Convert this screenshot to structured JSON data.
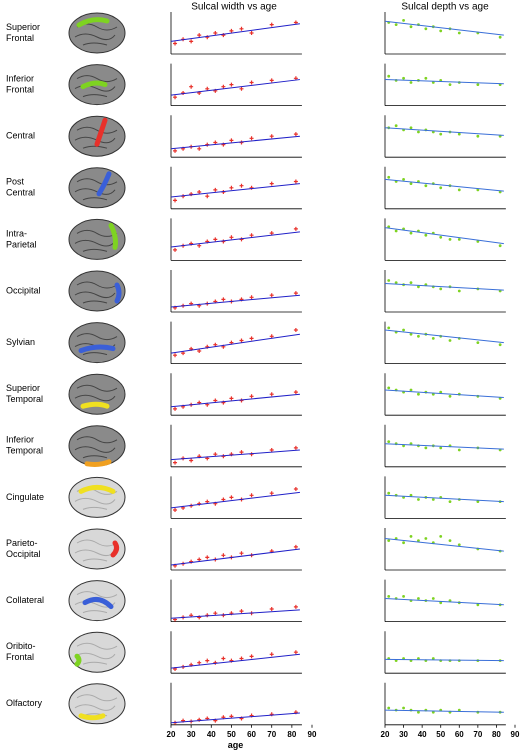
{
  "chart_data": {
    "type": "scatter",
    "x": [
      22,
      26,
      30,
      34,
      38,
      42,
      46,
      50,
      55,
      60,
      70,
      82
    ],
    "xlim": [
      20,
      90
    ],
    "xticks": [
      20,
      30,
      40,
      50,
      60,
      70,
      80,
      90
    ],
    "xlabel": "age",
    "ylim": [
      0,
      1
    ],
    "trend_x": [
      20,
      84
    ],
    "regions": [
      [
        "Superior",
        "Frontal"
      ],
      [
        "Inferior",
        "Frontal"
      ],
      [
        "Central"
      ],
      [
        "Post",
        "Central"
      ],
      [
        "Intra-",
        "Parietal"
      ],
      [
        "Occipital"
      ],
      [
        "Sylvian"
      ],
      [
        "Superior",
        "Temporal"
      ],
      [
        "Inferior",
        "Temporal"
      ],
      [
        "Cingulate"
      ],
      [
        "Parieto-",
        "Occipital"
      ],
      [
        "Collateral"
      ],
      [
        "Oribito-",
        "Frontal"
      ],
      [
        "Olfactory"
      ]
    ],
    "panels": [
      {
        "title": "Sulcal width vs age",
        "color": "#e8302a",
        "line_color": "#2020c8",
        "rows": [
          {
            "values": [
              0.25,
              0.35,
              0.3,
              0.45,
              0.4,
              0.5,
              0.45,
              0.55,
              0.6,
              0.5,
              0.7,
              0.75
            ],
            "trend": [
              0.3,
              0.72
            ]
          },
          {
            "values": [
              0.2,
              0.3,
              0.45,
              0.3,
              0.4,
              0.35,
              0.45,
              0.5,
              0.4,
              0.55,
              0.6,
              0.65
            ],
            "trend": [
              0.25,
              0.62
            ]
          },
          {
            "values": [
              0.15,
              0.2,
              0.25,
              0.2,
              0.3,
              0.35,
              0.3,
              0.4,
              0.35,
              0.45,
              0.5,
              0.55
            ],
            "trend": [
              0.2,
              0.5
            ]
          },
          {
            "values": [
              0.2,
              0.3,
              0.35,
              0.4,
              0.3,
              0.45,
              0.4,
              0.5,
              0.55,
              0.5,
              0.6,
              0.65
            ],
            "trend": [
              0.28,
              0.6
            ]
          },
          {
            "values": [
              0.25,
              0.35,
              0.4,
              0.35,
              0.45,
              0.5,
              0.45,
              0.55,
              0.5,
              0.6,
              0.65,
              0.75
            ],
            "trend": [
              0.32,
              0.68
            ]
          },
          {
            "values": [
              0.1,
              0.15,
              0.2,
              0.15,
              0.2,
              0.25,
              0.3,
              0.25,
              0.3,
              0.35,
              0.4,
              0.45
            ],
            "trend": [
              0.12,
              0.4
            ]
          },
          {
            "values": [
              0.2,
              0.25,
              0.35,
              0.3,
              0.4,
              0.45,
              0.4,
              0.5,
              0.55,
              0.6,
              0.65,
              0.8
            ],
            "trend": [
              0.25,
              0.7
            ]
          },
          {
            "values": [
              0.15,
              0.2,
              0.25,
              0.3,
              0.25,
              0.35,
              0.3,
              0.4,
              0.35,
              0.45,
              0.5,
              0.55
            ],
            "trend": [
              0.2,
              0.5
            ]
          },
          {
            "values": [
              0.1,
              0.2,
              0.15,
              0.25,
              0.2,
              0.3,
              0.25,
              0.3,
              0.35,
              0.3,
              0.4,
              0.45
            ],
            "trend": [
              0.17,
              0.4
            ]
          },
          {
            "values": [
              0.2,
              0.25,
              0.3,
              0.35,
              0.4,
              0.35,
              0.45,
              0.5,
              0.45,
              0.55,
              0.6,
              0.7
            ],
            "trend": [
              0.25,
              0.62
            ]
          },
          {
            "values": [
              0.1,
              0.15,
              0.2,
              0.25,
              0.3,
              0.25,
              0.35,
              0.3,
              0.4,
              0.35,
              0.45,
              0.55
            ],
            "trend": [
              0.12,
              0.5
            ]
          },
          {
            "values": [
              0.05,
              0.1,
              0.15,
              0.1,
              0.15,
              0.2,
              0.15,
              0.2,
              0.25,
              0.2,
              0.3,
              0.35
            ],
            "trend": [
              0.08,
              0.28
            ]
          },
          {
            "values": [
              0.1,
              0.15,
              0.2,
              0.25,
              0.3,
              0.25,
              0.35,
              0.3,
              0.35,
              0.4,
              0.45,
              0.5
            ],
            "trend": [
              0.12,
              0.45
            ]
          },
          {
            "values": [
              0.05,
              0.1,
              0.08,
              0.12,
              0.15,
              0.1,
              0.18,
              0.2,
              0.15,
              0.22,
              0.25,
              0.3
            ],
            "trend": [
              0.05,
              0.28
            ]
          }
        ]
      },
      {
        "title": "Sulcal depth vs age",
        "color": "#7ed321",
        "line_color": "#3a6fd8",
        "rows": [
          {
            "values": [
              0.75,
              0.7,
              0.8,
              0.65,
              0.7,
              0.6,
              0.65,
              0.55,
              0.6,
              0.5,
              0.5,
              0.4
            ],
            "trend": [
              0.78,
              0.45
            ]
          },
          {
            "values": [
              0.7,
              0.6,
              0.65,
              0.55,
              0.6,
              0.65,
              0.55,
              0.6,
              0.5,
              0.55,
              0.5,
              0.5
            ],
            "trend": [
              0.62,
              0.52
            ]
          },
          {
            "values": [
              0.7,
              0.75,
              0.65,
              0.7,
              0.6,
              0.65,
              0.6,
              0.55,
              0.6,
              0.55,
              0.5,
              0.5
            ],
            "trend": [
              0.7,
              0.52
            ]
          },
          {
            "values": [
              0.75,
              0.65,
              0.7,
              0.6,
              0.65,
              0.55,
              0.6,
              0.5,
              0.55,
              0.45,
              0.45,
              0.4
            ],
            "trend": [
              0.7,
              0.42
            ]
          },
          {
            "values": [
              0.8,
              0.7,
              0.75,
              0.65,
              0.7,
              0.6,
              0.65,
              0.55,
              0.5,
              0.5,
              0.45,
              0.35
            ],
            "trend": [
              0.78,
              0.4
            ]
          },
          {
            "values": [
              0.75,
              0.7,
              0.65,
              0.7,
              0.6,
              0.65,
              0.6,
              0.55,
              0.6,
              0.5,
              0.55,
              0.5
            ],
            "trend": [
              0.68,
              0.52
            ]
          },
          {
            "values": [
              0.85,
              0.75,
              0.8,
              0.7,
              0.65,
              0.7,
              0.6,
              0.65,
              0.55,
              0.6,
              0.5,
              0.45
            ],
            "trend": [
              0.8,
              0.5
            ]
          },
          {
            "values": [
              0.65,
              0.6,
              0.55,
              0.6,
              0.5,
              0.55,
              0.5,
              0.55,
              0.45,
              0.5,
              0.45,
              0.4
            ],
            "trend": [
              0.6,
              0.42
            ]
          },
          {
            "values": [
              0.6,
              0.55,
              0.5,
              0.55,
              0.5,
              0.45,
              0.5,
              0.45,
              0.5,
              0.4,
              0.45,
              0.4
            ],
            "trend": [
              0.55,
              0.42
            ]
          },
          {
            "values": [
              0.6,
              0.55,
              0.5,
              0.55,
              0.45,
              0.5,
              0.45,
              0.5,
              0.4,
              0.45,
              0.4,
              0.4
            ],
            "trend": [
              0.55,
              0.4
            ]
          },
          {
            "values": [
              0.7,
              0.75,
              0.65,
              0.8,
              0.7,
              0.75,
              0.65,
              0.8,
              0.7,
              0.6,
              0.5,
              0.45
            ],
            "trend": [
              0.75,
              0.45
            ]
          },
          {
            "values": [
              0.6,
              0.55,
              0.6,
              0.5,
              0.55,
              0.5,
              0.55,
              0.45,
              0.5,
              0.45,
              0.4,
              0.4
            ],
            "trend": [
              0.55,
              0.4
            ]
          },
          {
            "values": [
              0.35,
              0.3,
              0.35,
              0.3,
              0.35,
              0.3,
              0.35,
              0.3,
              0.3,
              0.3,
              0.3,
              0.3
            ],
            "trend": [
              0.33,
              0.3
            ]
          },
          {
            "values": [
              0.4,
              0.35,
              0.4,
              0.35,
              0.3,
              0.35,
              0.3,
              0.35,
              0.3,
              0.35,
              0.3,
              0.3
            ],
            "trend": [
              0.35,
              0.3
            ]
          }
        ]
      }
    ]
  }
}
